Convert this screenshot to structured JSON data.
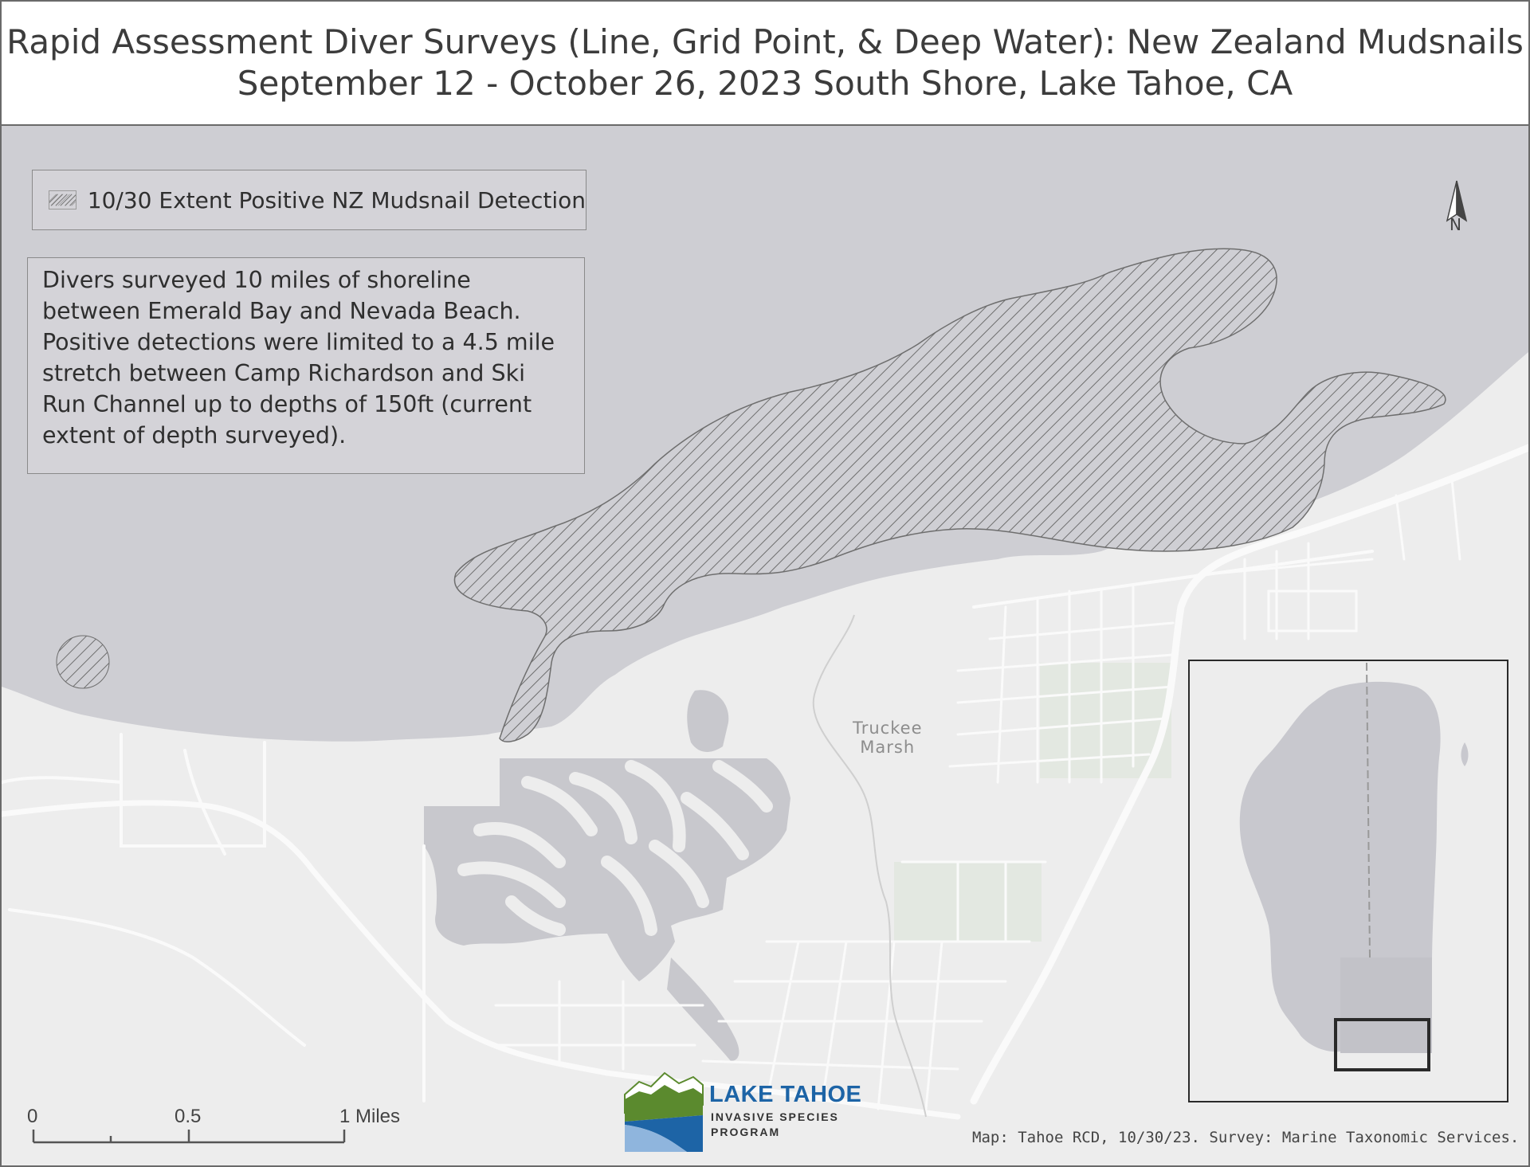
{
  "title": {
    "line1": "Rapid Assessment Diver Surveys (Line, Grid Point, & Deep Water): New Zealand Mudsnails",
    "line2": "September 12 - October 26, 2023 South Shore, Lake Tahoe, CA"
  },
  "legend": {
    "label": "10/30 Extent Positive NZ Mudsnail Detection"
  },
  "note": {
    "text": "Divers surveyed 10 miles of shoreline between Emerald Bay and Nevada Beach. Positive detections were limited to a 4.5 mile stretch between Camp Richardson and Ski Run Channel up to depths of 150ft (current extent of depth surveyed)."
  },
  "north_arrow": {
    "label": "N"
  },
  "places": {
    "truckee_marsh_line1": "Truckee",
    "truckee_marsh_line2": "Marsh"
  },
  "scale_bar": {
    "tick_0": "0",
    "tick_mid": "0.5",
    "tick_end": "1 Miles"
  },
  "logo": {
    "title": "LAKE TAHOE",
    "subtitle_line1": "INVASIVE SPECIES",
    "subtitle_line2": "PROGRAM"
  },
  "credit": "Map: Tahoe RCD, 10/30/23. Survey:  Marine Taxonomic Services.",
  "colors": {
    "water": "#ceced3",
    "land": "#ededed",
    "roads": "#fafafa",
    "parks": "#e3e8e1",
    "hatch": "#6e6e6e",
    "logo_blue": "#1d64a6",
    "logo_green": "#5b8a2e"
  }
}
